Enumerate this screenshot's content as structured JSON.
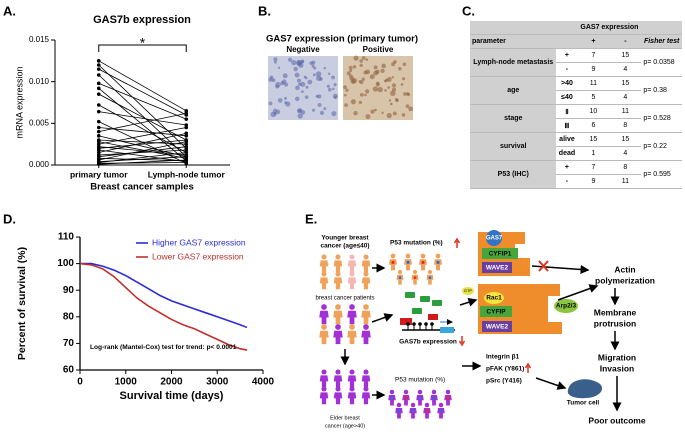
{
  "chart_data": [
    {
      "panel_label": "A.",
      "type": "line",
      "title": "GAS7b expression",
      "x_label": "Breast cancer samples",
      "y_label": "mRNA expression",
      "annotation": "*",
      "categories": [
        "primary tumor",
        "Lymph-node tumor"
      ],
      "color": "#000000",
      "ylim": [
        0,
        0.015
      ],
      "yticks": [
        {
          "value": 0,
          "label": "0.000"
        },
        {
          "value": 0.005,
          "label": "0.005"
        },
        {
          "value": 0.01,
          "label": "0.010"
        },
        {
          "value": 0.015,
          "label": "0.015"
        }
      ],
      "series": [
        {
          "values": [
            0.0125,
            0.0065
          ]
        },
        {
          "values": [
            0.012,
            0.002
          ]
        },
        {
          "values": [
            0.0115,
            0.006
          ]
        },
        {
          "values": [
            0.0108,
            0.001
          ]
        },
        {
          "values": [
            0.0098,
            0.0055
          ]
        },
        {
          "values": [
            0.0092,
            0.0005
          ]
        },
        {
          "values": [
            0.0085,
            0.003
          ]
        },
        {
          "values": [
            0.0072,
            0.0015
          ]
        },
        {
          "values": [
            0.0064,
            0.0048
          ]
        },
        {
          "values": [
            0.0052,
            0.0002
          ]
        },
        {
          "values": [
            0.0045,
            0.0035
          ]
        },
        {
          "values": [
            0.004,
            0.0062
          ]
        },
        {
          "values": [
            0.0035,
            0.001
          ]
        },
        {
          "values": [
            0.003,
            0.0025
          ]
        },
        {
          "values": [
            0.0028,
            0.0008
          ]
        },
        {
          "values": [
            0.0025,
            0.0045
          ]
        },
        {
          "values": [
            0.0022,
            0.0012
          ]
        },
        {
          "values": [
            0.002,
            0.003
          ]
        },
        {
          "values": [
            0.0018,
            0.0004
          ]
        },
        {
          "values": [
            0.0015,
            0.0038
          ]
        },
        {
          "values": [
            0.0012,
            0.0018
          ]
        },
        {
          "values": [
            0.001,
            0.0022
          ]
        },
        {
          "values": [
            0.0008,
            0.0005
          ]
        },
        {
          "values": [
            0.0006,
            0.0028
          ]
        },
        {
          "values": [
            0.0004,
            0.001
          ]
        },
        {
          "values": [
            0.0003,
            0.0015
          ]
        },
        {
          "values": [
            0.0002,
            0.0003
          ]
        },
        {
          "values": [
            0.0001,
            0.0006
          ]
        }
      ]
    },
    {
      "panel_label": "D.",
      "type": "line",
      "x_label": "Survival time (days)",
      "y_label": "Percent of survival (%)",
      "annotation": "Log-rank (Mantel-Cox) test for trend: p< 0.0001",
      "x": [
        0,
        250,
        500,
        750,
        1000,
        1250,
        1500,
        1750,
        2000,
        2250,
        2500,
        2750,
        3000,
        3250,
        3500,
        3650
      ],
      "series": [
        {
          "name": "Higher GAS7 expression",
          "color": "#2b2bd9",
          "values": [
            100,
            100,
            99,
            97.5,
            95.5,
            93,
            90.5,
            88,
            86,
            84.5,
            83,
            81.5,
            80,
            78.5,
            77,
            76
          ]
        },
        {
          "name": "Lower GAS7 expression",
          "color": "#c0302b",
          "values": [
            100,
            99.5,
            98,
            95,
            91,
            87,
            84,
            81.5,
            79,
            77,
            75.5,
            73.5,
            71.5,
            69.5,
            68,
            67.5
          ]
        }
      ],
      "xlim": [
        0,
        4000
      ],
      "xticks": [
        0,
        1000,
        2000,
        3000,
        4000
      ],
      "ylim": [
        60,
        110
      ],
      "yticks": [
        60,
        70,
        80,
        90,
        100,
        110
      ],
      "legend": "upper right"
    }
  ],
  "panel_b": {
    "label": "B.",
    "title": "GAS7 expression (primary tumor)",
    "images": [
      "Negative",
      "Positive"
    ]
  },
  "table": {
    "label": "C.",
    "group_header": "GAS7 expression",
    "columns": [
      "parameter",
      "+",
      "-",
      "Fisher test"
    ],
    "rows": [
      {
        "parameter": "Lymph-node metastasis",
        "subrows": [
          [
            "+",
            "7",
            "15"
          ],
          [
            "-",
            "9",
            "4"
          ]
        ],
        "fisher": "p= 0.0358"
      },
      {
        "parameter": "age",
        "subrows": [
          [
            ">40",
            "11",
            "15"
          ],
          [
            "≤40",
            "5",
            "4"
          ]
        ],
        "fisher": "p= 0.38"
      },
      {
        "parameter": "stage",
        "subrows": [
          [
            "Ⅱ",
            "10",
            "11"
          ],
          [
            "Ⅲ",
            "6",
            "8"
          ]
        ],
        "fisher": "p= 0.528"
      },
      {
        "parameter": "survival",
        "subrows": [
          [
            "alive",
            "15",
            "15"
          ],
          [
            "dead",
            "1",
            "4"
          ]
        ],
        "fisher": "p= 0.22"
      },
      {
        "parameter": "P53 (IHC)",
        "subrows": [
          [
            "+",
            "7",
            "8"
          ],
          [
            "-",
            "9",
            "11"
          ]
        ],
        "fisher": "p= 0.595"
      }
    ]
  },
  "diagram": {
    "label": "E.",
    "younger": [
      "Younger breast",
      "cancer (age≤40)"
    ],
    "p53_up": "P53 mutation (%)",
    "patients": "breast cancer patients",
    "gas7b": "GAS7b expression",
    "elder": [
      "Elder breast",
      "cancer (age>40)"
    ],
    "p53": "P53 mutation (%)",
    "gas7": "GAS7",
    "cyfip1": "CYFIP1",
    "wave2_top": "WAVE2",
    "actin": [
      "Actin",
      "polymerization"
    ],
    "gtp": "GTP",
    "rac1": "Rac1",
    "cyfip": "CYFIP",
    "arp": "Arp2/3",
    "wave2": "WAVE2",
    "membrane": [
      "Membrane",
      "protrusion"
    ],
    "migration": [
      "Migration",
      "Invasion"
    ],
    "integrin": [
      "Integrin β1",
      "pFAK (Y861)",
      "pSrc (Y416)"
    ],
    "tumor": "Tumor cell",
    "outcome": "Poor outcome"
  }
}
